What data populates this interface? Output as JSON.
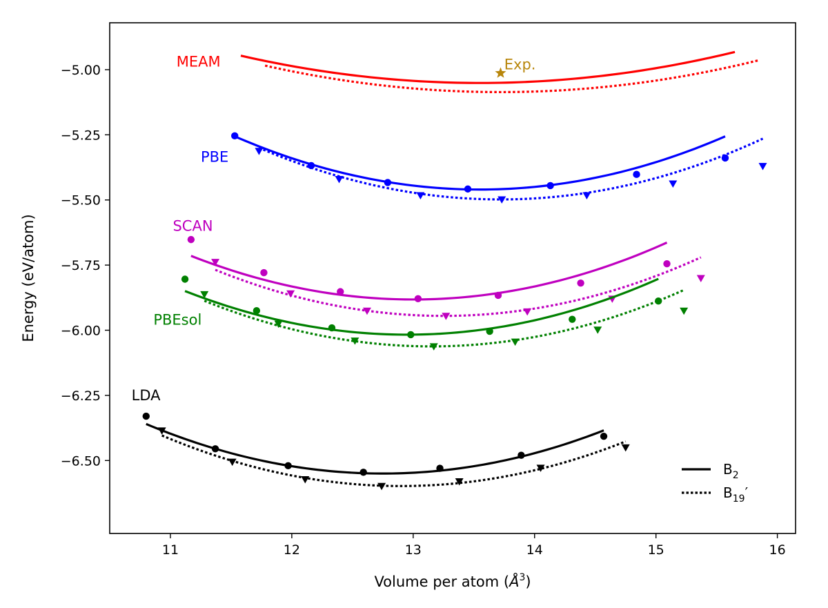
{
  "chart_data": {
    "type": "line",
    "title": "",
    "xlabel": "Volume per atom (",
    "xlabel_unit": "Å",
    "xlabel_exp": "3",
    "xlabel_close": ")",
    "ylabel": "Energy (eV/atom)",
    "xlim": [
      10.5,
      16.15
    ],
    "ylim": [
      -6.78,
      -4.82
    ],
    "xticks": [
      11,
      12,
      13,
      14,
      15,
      16
    ],
    "yticks": [
      -5.0,
      -5.25,
      -5.5,
      -5.75,
      -6.0,
      -6.25,
      -6.5
    ],
    "xtick_labels": [
      "11",
      "12",
      "13",
      "14",
      "15",
      "16"
    ],
    "ytick_labels": [
      "−5.00",
      "−5.25",
      "−5.50",
      "−5.75",
      "−6.00",
      "−6.25",
      "−6.50"
    ],
    "grid": false,
    "legend": {
      "placement": "bottom-right",
      "entries": [
        {
          "style": "solid",
          "label": "B",
          "sub": "2",
          "suffix": ""
        },
        {
          "style": "dotted",
          "label": "B",
          "sub": "19",
          "suffix": "′"
        }
      ]
    },
    "series": [
      {
        "name": "MEAM",
        "color": "#ff0000",
        "label_pos": [
          11.05,
          -4.97
        ],
        "b2_fit": {
          "vmin": 11.58,
          "vmax": 15.65,
          "v0": 13.55,
          "e0": -5.051,
          "a": 0.027
        },
        "b19_fit": {
          "vmin": 11.78,
          "vmax": 15.85,
          "v0": 13.72,
          "e0": -5.086,
          "a": 0.027
        },
        "b2_points": [],
        "b19_points": []
      },
      {
        "name": "PBE",
        "color": "#0000ff",
        "label_pos": [
          11.25,
          -5.335
        ],
        "b2_fit": {
          "vmin": 11.52,
          "vmax": 15.57,
          "v0": 13.55,
          "e0": -5.46,
          "a": 0.05
        },
        "b19_fit": {
          "vmin": 11.73,
          "vmax": 15.88,
          "v0": 13.72,
          "e0": -5.498,
          "a": 0.05
        },
        "b2_points": [
          [
            11.53,
            -5.254
          ],
          [
            12.16,
            -5.368
          ],
          [
            12.79,
            -5.433
          ],
          [
            13.45,
            -5.458
          ],
          [
            14.13,
            -5.445
          ],
          [
            14.84,
            -5.402
          ],
          [
            15.57,
            -5.339
          ]
        ],
        "b19_points": [
          [
            11.73,
            -5.312
          ],
          [
            12.39,
            -5.42
          ],
          [
            13.06,
            -5.482
          ],
          [
            13.73,
            -5.498
          ],
          [
            14.43,
            -5.482
          ],
          [
            15.14,
            -5.437
          ],
          [
            15.88,
            -5.37
          ]
        ]
      },
      {
        "name": "SCAN",
        "color": "#bf00bf",
        "label_pos": [
          11.02,
          -5.6
        ],
        "b2_fit": {
          "vmin": 11.17,
          "vmax": 15.09,
          "v0": 13.0,
          "e0": -5.882,
          "a": 0.05
        },
        "b19_fit": {
          "vmin": 11.37,
          "vmax": 15.37,
          "v0": 13.25,
          "e0": -5.945,
          "a": 0.05
        },
        "b2_points": [
          [
            11.17,
            -5.652
          ],
          [
            11.77,
            -5.779
          ],
          [
            12.4,
            -5.852
          ],
          [
            13.04,
            -5.879
          ],
          [
            13.7,
            -5.866
          ],
          [
            14.38,
            -5.819
          ],
          [
            15.09,
            -5.745
          ]
        ],
        "b19_points": [
          [
            11.37,
            -5.738
          ],
          [
            11.99,
            -5.859
          ],
          [
            12.62,
            -5.925
          ],
          [
            13.27,
            -5.945
          ],
          [
            13.94,
            -5.928
          ],
          [
            14.64,
            -5.879
          ],
          [
            15.37,
            -5.8
          ]
        ]
      },
      {
        "name": "PBEsol",
        "color": "#008000",
        "label_pos": [
          10.86,
          -5.96
        ],
        "b2_fit": {
          "vmin": 11.12,
          "vmax": 15.02,
          "v0": 12.95,
          "e0": -6.017,
          "a": 0.05
        },
        "b19_fit": {
          "vmin": 11.28,
          "vmax": 15.23,
          "v0": 13.15,
          "e0": -6.062,
          "a": 0.05
        },
        "b2_points": [
          [
            11.12,
            -5.804
          ],
          [
            11.71,
            -5.925
          ],
          [
            12.33,
            -5.991
          ],
          [
            12.98,
            -6.017
          ],
          [
            13.63,
            -6.004
          ],
          [
            14.31,
            -5.958
          ],
          [
            15.02,
            -5.888
          ]
        ],
        "b19_points": [
          [
            11.28,
            -5.862
          ],
          [
            11.89,
            -5.975
          ],
          [
            12.52,
            -6.04
          ],
          [
            13.17,
            -6.062
          ],
          [
            13.84,
            -6.044
          ],
          [
            14.52,
            -5.998
          ],
          [
            15.23,
            -5.925
          ]
        ]
      },
      {
        "name": "LDA",
        "color": "#000000",
        "label_pos": [
          10.68,
          -6.25
        ],
        "b2_fit": {
          "vmin": 10.8,
          "vmax": 14.57,
          "v0": 12.75,
          "e0": -6.55,
          "a": 0.05
        },
        "b19_fit": {
          "vmin": 10.93,
          "vmax": 14.75,
          "v0": 12.9,
          "e0": -6.598,
          "a": 0.05
        },
        "b2_points": [
          [
            10.8,
            -6.33
          ],
          [
            11.37,
            -6.455
          ],
          [
            11.97,
            -6.52
          ],
          [
            12.59,
            -6.545
          ],
          [
            13.22,
            -6.53
          ],
          [
            13.89,
            -6.48
          ],
          [
            14.57,
            -6.407
          ]
        ],
        "b19_points": [
          [
            10.93,
            -6.385
          ],
          [
            11.51,
            -6.505
          ],
          [
            12.11,
            -6.572
          ],
          [
            12.74,
            -6.598
          ],
          [
            13.38,
            -6.58
          ],
          [
            14.05,
            -6.528
          ],
          [
            14.75,
            -6.45
          ]
        ]
      }
    ],
    "annotations": [
      {
        "text": "Exp.",
        "color": "#b8860b",
        "marker": "star",
        "x": 13.72,
        "y": -5.013,
        "label_pos": [
          13.75,
          -4.98
        ]
      }
    ]
  }
}
